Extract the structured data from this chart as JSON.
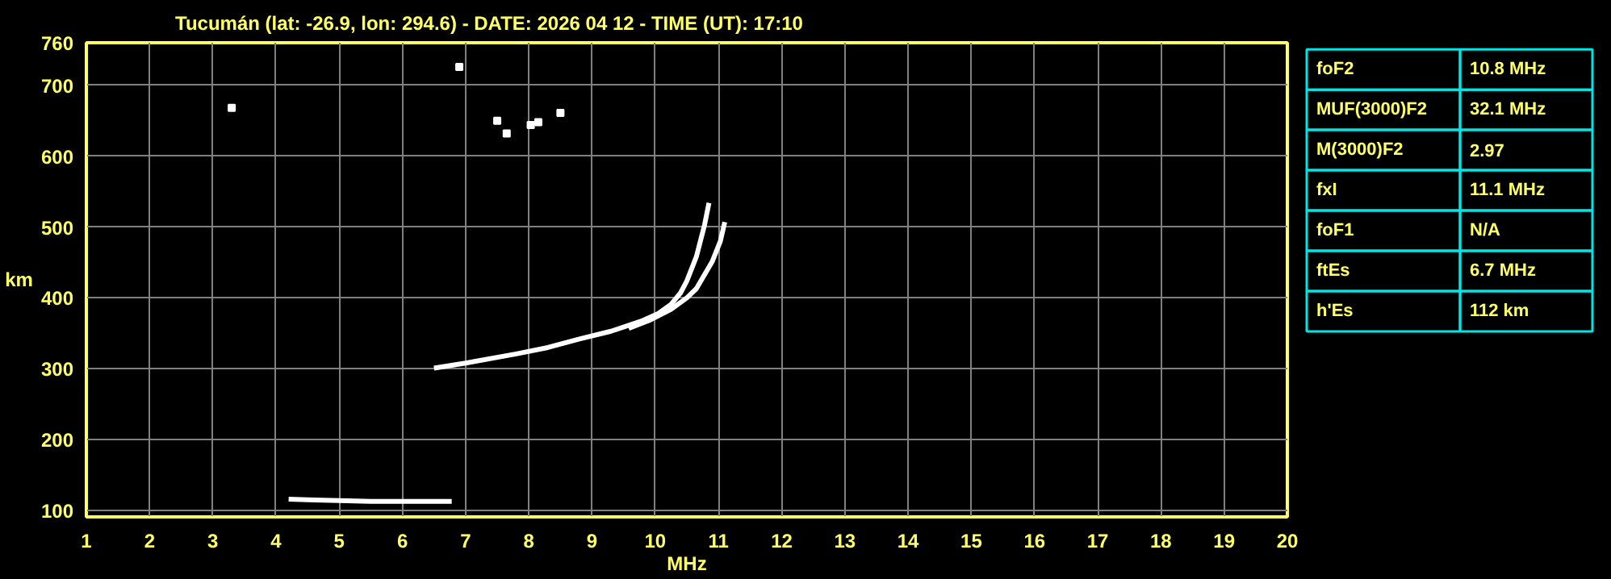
{
  "chart_data": [
    {
      "type": "line",
      "title": "Tucumán (lat: -26.9, lon: 294.6) - DATE: 2026 04 12 - TIME (UT): 17:10",
      "xlabel": "MHz",
      "ylabel": "km",
      "xlim": [
        1,
        20
      ],
      "ylim": [
        91,
        760
      ],
      "xticks": [
        1,
        2,
        3,
        4,
        5,
        6,
        7,
        8,
        9,
        10,
        11,
        12,
        13,
        14,
        15,
        16,
        17,
        18,
        19,
        20
      ],
      "yticks": [
        100,
        200,
        300,
        400,
        500,
        600,
        700,
        760
      ],
      "grid": true,
      "series": [
        {
          "color": "#ffffff",
          "x": [
            6.5,
            7.0,
            7.8,
            8.3,
            8.8,
            9.3,
            9.8,
            10.05,
            10.25,
            10.4,
            10.5,
            10.65,
            10.78,
            10.85
          ],
          "values": [
            301,
            308,
            321,
            330,
            342,
            353,
            368,
            378,
            391,
            407,
            424,
            458,
            503,
            534
          ]
        },
        {
          "color": "#ffffff",
          "x": [
            9.58,
            9.9,
            10.25,
            10.5,
            10.65,
            10.9,
            11.03,
            11.1
          ],
          "values": [
            357,
            368,
            384,
            400,
            413,
            451,
            480,
            507
          ]
        },
        {
          "color": "#ffffff",
          "x": [
            4.2,
            4.6,
            5.0,
            5.5,
            6.0,
            6.4,
            6.78
          ],
          "values": [
            116,
            115,
            114,
            113,
            113,
            113,
            113
          ]
        },
        {
          "type": "scatter",
          "marker": "square",
          "color": "#ffffff",
          "x": [
            3.3,
            6.9,
            7.5,
            7.65,
            8.03,
            8.15,
            8.5
          ],
          "values": [
            668,
            726,
            650,
            632,
            644,
            648,
            661
          ]
        }
      ]
    },
    {
      "type": "other",
      "annotations": [
        "foF2",
        "10.8 MHz",
        "MUF(3000)F2",
        "32.1 MHz",
        "M(3000)F2",
        "2.97",
        "fxI",
        "11.1 MHz",
        "foF1",
        "N/A",
        "ftEs",
        "6.7 MHz",
        "h'Es",
        "112 km"
      ]
    }
  ]
}
